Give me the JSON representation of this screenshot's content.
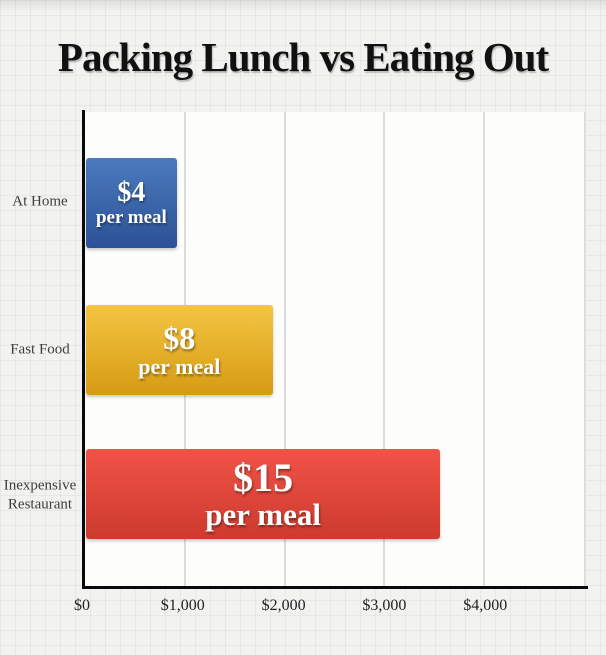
{
  "title": "Packing Lunch vs Eating Out",
  "chart_data": {
    "type": "bar",
    "orientation": "horizontal",
    "title": "Packing Lunch vs Eating Out",
    "categories": [
      "At Home",
      "Fast Food",
      "Inexpensive Restaurant"
    ],
    "values": [
      960,
      1920,
      3600
    ],
    "bar_value_labels": [
      {
        "amount": "$4",
        "unit": "per meal"
      },
      {
        "amount": "$8",
        "unit": "per meal"
      },
      {
        "amount": "$15",
        "unit": "per meal"
      }
    ],
    "per_meal_cost_dollars": [
      4,
      8,
      15
    ],
    "xlim": [
      0,
      5000
    ],
    "x_ticks": [
      {
        "value": 0,
        "label": "$0"
      },
      {
        "value": 1000,
        "label": "$1,000"
      },
      {
        "value": 2000,
        "label": "$2,000"
      },
      {
        "value": 3000,
        "label": "$3,000"
      },
      {
        "value": 4000,
        "label": "$4,000"
      }
    ],
    "grid": "vertical gridlines every 1000, plus right plot edge",
    "legend": "none",
    "bar_colors": [
      {
        "top": "#4b7abe",
        "bottom": "#2c5295"
      },
      {
        "top": "#f3c542",
        "bottom": "#d79b14"
      },
      {
        "top": "#f15347",
        "bottom": "#cd3a2e"
      }
    ],
    "text_color_on_bars": "#ffffff"
  },
  "colors": {
    "page_background": "#f2f2f0",
    "plot_background": "#fdfdfc",
    "gridline": "#dcdcda",
    "axis": "#0a0a0a",
    "title_text": "#111111",
    "category_text": "#3d3d3d",
    "tick_text": "#222222"
  }
}
